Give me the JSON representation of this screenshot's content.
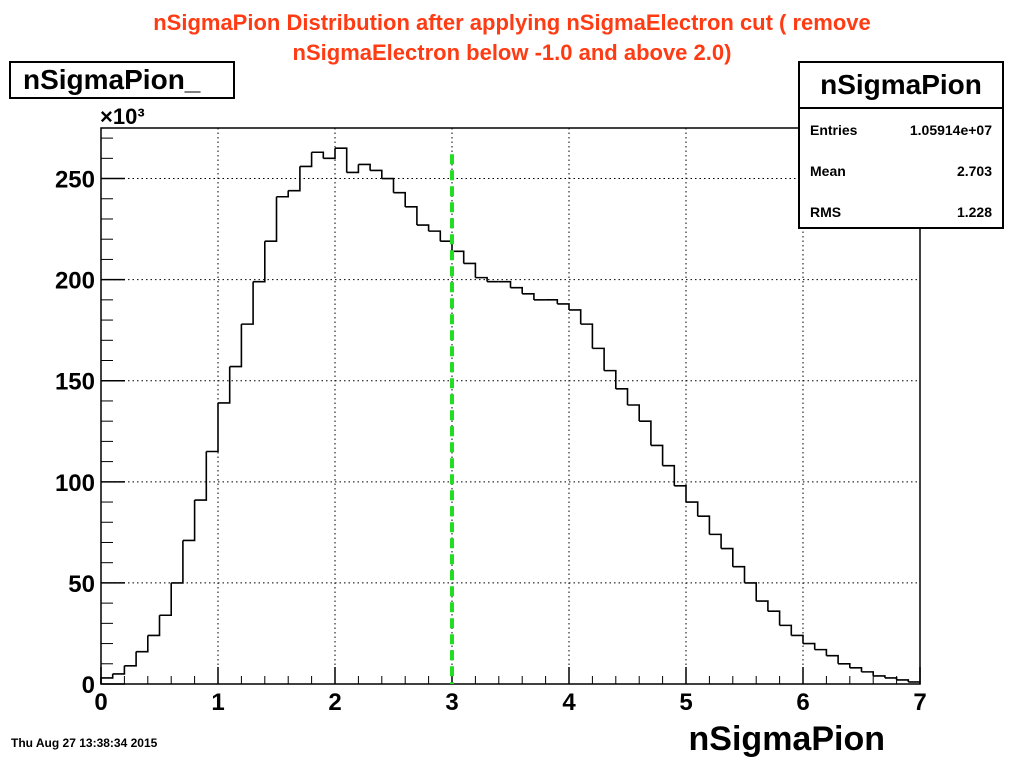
{
  "title": {
    "line1": "nSigmaPion Distribution after applying nSigmaElectron cut ( remove",
    "line2": "nSigmaElectron below -1.0 and above 2.0)"
  },
  "hist_name_box": "nSigmaPion_",
  "stats_box": {
    "title": "nSigmaPion",
    "rows": [
      {
        "label": "Entries",
        "value": "1.05914e+07"
      },
      {
        "label": "Mean",
        "value": "2.703"
      },
      {
        "label": "RMS",
        "value": "1.228"
      }
    ]
  },
  "timestamp": "Thu Aug 27 13:38:34 2015",
  "colors": {
    "title": "#ff3b14",
    "cut_line": "#22dd22",
    "histogram": "#000000"
  },
  "chart_data": {
    "type": "histogram",
    "xlabel": "nSigmaPion",
    "ylabel": "",
    "y_exponent_label": "×10³",
    "xlim": [
      0,
      7
    ],
    "ylim": [
      0,
      275
    ],
    "x_ticks": [
      "0",
      "1",
      "2",
      "3",
      "4",
      "5",
      "6",
      "7"
    ],
    "y_ticks": [
      "0",
      "50",
      "100",
      "150",
      "200",
      "250"
    ],
    "grid": true,
    "bin_width": 0.1,
    "bin_low_edges": [
      0.0,
      0.1,
      0.2,
      0.3,
      0.4,
      0.5,
      0.6,
      0.7,
      0.8,
      0.9,
      1.0,
      1.1,
      1.2,
      1.3,
      1.4,
      1.5,
      1.6,
      1.7,
      1.8,
      1.9,
      2.0,
      2.1,
      2.2,
      2.3,
      2.4,
      2.5,
      2.6,
      2.7,
      2.8,
      2.9,
      3.0,
      3.1,
      3.2,
      3.3,
      3.4,
      3.5,
      3.6,
      3.7,
      3.8,
      3.9,
      4.0,
      4.1,
      4.2,
      4.3,
      4.4,
      4.5,
      4.6,
      4.7,
      4.8,
      4.9,
      5.0,
      5.1,
      5.2,
      5.3,
      5.4,
      5.5,
      5.6,
      5.7,
      5.8,
      5.9,
      6.0,
      6.1,
      6.2,
      6.3,
      6.4,
      6.5,
      6.6,
      6.7,
      6.8,
      6.9
    ],
    "values": [
      3,
      5,
      9,
      16,
      24,
      34,
      50,
      71,
      91,
      115,
      139,
      157,
      178,
      199,
      219,
      241,
      244,
      256,
      263,
      260,
      265,
      253,
      257,
      254,
      250,
      243,
      236,
      227,
      224,
      219,
      214,
      208,
      201,
      199,
      199,
      196,
      193,
      190,
      190,
      188,
      185,
      178,
      166,
      155,
      146,
      138,
      130,
      118,
      108,
      98,
      90,
      83,
      74,
      67,
      58,
      50,
      41,
      36,
      29,
      24,
      20,
      17,
      14,
      10,
      8,
      6,
      4,
      3,
      2,
      1
    ],
    "annotations": [
      {
        "type": "vertical-dashed-line",
        "x": 3.0,
        "y_top": 262,
        "color": "#22dd22"
      }
    ]
  }
}
